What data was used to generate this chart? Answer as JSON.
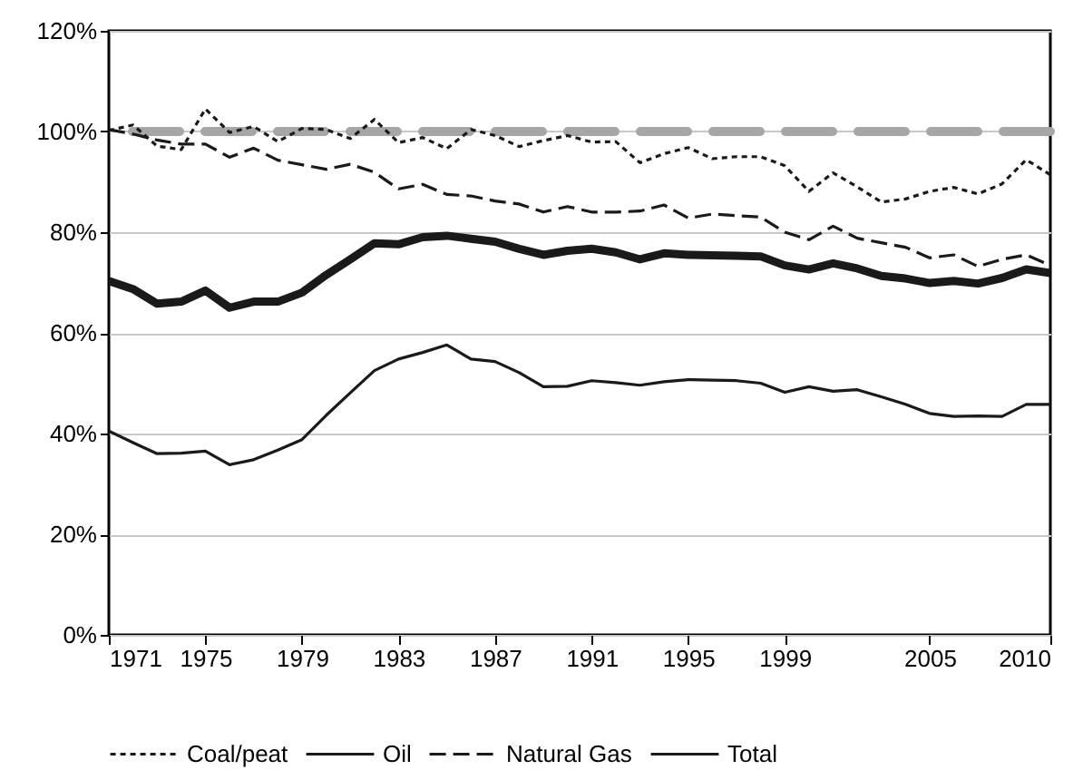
{
  "chart_data": {
    "type": "line",
    "x": [
      1971,
      1972,
      1973,
      1974,
      1975,
      1976,
      1977,
      1978,
      1979,
      1980,
      1981,
      1982,
      1983,
      1984,
      1985,
      1986,
      1987,
      1988,
      1989,
      1990,
      1991,
      1992,
      1993,
      1994,
      1995,
      1996,
      1997,
      1998,
      1999,
      2000,
      2001,
      2002,
      2003,
      2004,
      2005,
      2006,
      2007,
      2008,
      2009,
      2010
    ],
    "series": [
      {
        "name": "Coal/peat",
        "color": "#1a1a1a",
        "line_style": "dotted",
        "values": [
          100.2,
          101.3,
          97.1,
          96.4,
          104.5,
          99.8,
          101,
          98,
          100.6,
          100.4,
          98.6,
          102.4,
          97.8,
          98.8,
          96.6,
          100.4,
          99.2,
          97,
          98.2,
          99.2,
          97.9,
          98,
          93.8,
          95.6,
          96.8,
          94.6,
          95,
          95,
          93.2,
          88.1,
          91.8,
          89,
          86,
          86.6,
          88.1,
          88.9,
          87.6,
          89.6,
          94.4,
          91.4
        ]
      },
      {
        "name": "Oil",
        "color": "#1a1a1a",
        "line_style": "solid",
        "values": [
          40.5,
          38.2,
          36,
          36.1,
          36.5,
          33.8,
          34.8,
          36.7,
          38.8,
          43.6,
          48.1,
          52.5,
          54.8,
          56.1,
          57.6,
          54.8,
          54.3,
          52.1,
          49.3,
          49.4,
          50.5,
          50.1,
          49.6,
          50.3,
          50.7,
          50.6,
          50.5,
          50,
          48.2,
          49.3,
          48.4,
          48.7,
          47.3,
          45.8,
          44,
          43.4,
          43.5,
          43.4,
          45.8,
          45.8
        ]
      },
      {
        "name": "Natural Gas",
        "color": "#1a1a1a",
        "line_style": "dashed",
        "values": [
          100.4,
          99.5,
          98.3,
          97.5,
          97.5,
          94.9,
          96.7,
          94.3,
          93.4,
          92.5,
          93.5,
          91.9,
          88.6,
          89.5,
          87.5,
          87.2,
          86.2,
          85.6,
          84,
          85.1,
          84,
          84,
          84.2,
          85.4,
          82.8,
          83.6,
          83.3,
          83,
          80,
          78.5,
          81.2,
          78.8,
          77.9,
          77,
          74.9,
          75.5,
          73.2,
          74.6,
          75.5,
          73.4
        ]
      },
      {
        "name": "Total",
        "color": "#1a1a1a",
        "line_style": "solid",
        "values": [
          70.3,
          68.7,
          65.8,
          66.2,
          68.4,
          65,
          66.2,
          66.2,
          68,
          71.5,
          74.6,
          77.8,
          77.6,
          79,
          79.3,
          78.7,
          78.1,
          76.7,
          75.5,
          76.3,
          76.7,
          76,
          74.6,
          75.8,
          75.5,
          75.4,
          75.3,
          75.2,
          73.4,
          72.6,
          73.8,
          72.8,
          71.3,
          70.8,
          69.9,
          70.3,
          69.8,
          70.9,
          72.6,
          71.9
        ]
      }
    ],
    "xlim": [
      1971,
      2010
    ],
    "xticks": [
      1971,
      1975,
      1979,
      1983,
      1987,
      1991,
      1995,
      1999,
      2005,
      2010
    ],
    "ylim": [
      0,
      120
    ],
    "yticks": [
      {
        "value": 0,
        "label": "0%"
      },
      {
        "value": 20,
        "label": "20%"
      },
      {
        "value": 40,
        "label": "40%"
      },
      {
        "value": 60,
        "label": "60%"
      },
      {
        "value": 80,
        "label": "80%"
      },
      {
        "value": 100,
        "label": "100%"
      },
      {
        "value": 120,
        "label": "120%"
      }
    ],
    "ref_lines": [
      {
        "axis": "y",
        "value": 100,
        "color": "#a6a6a6",
        "line_style": "dashed"
      }
    ],
    "grid": "y",
    "legend": "bottom",
    "marker": "none"
  }
}
